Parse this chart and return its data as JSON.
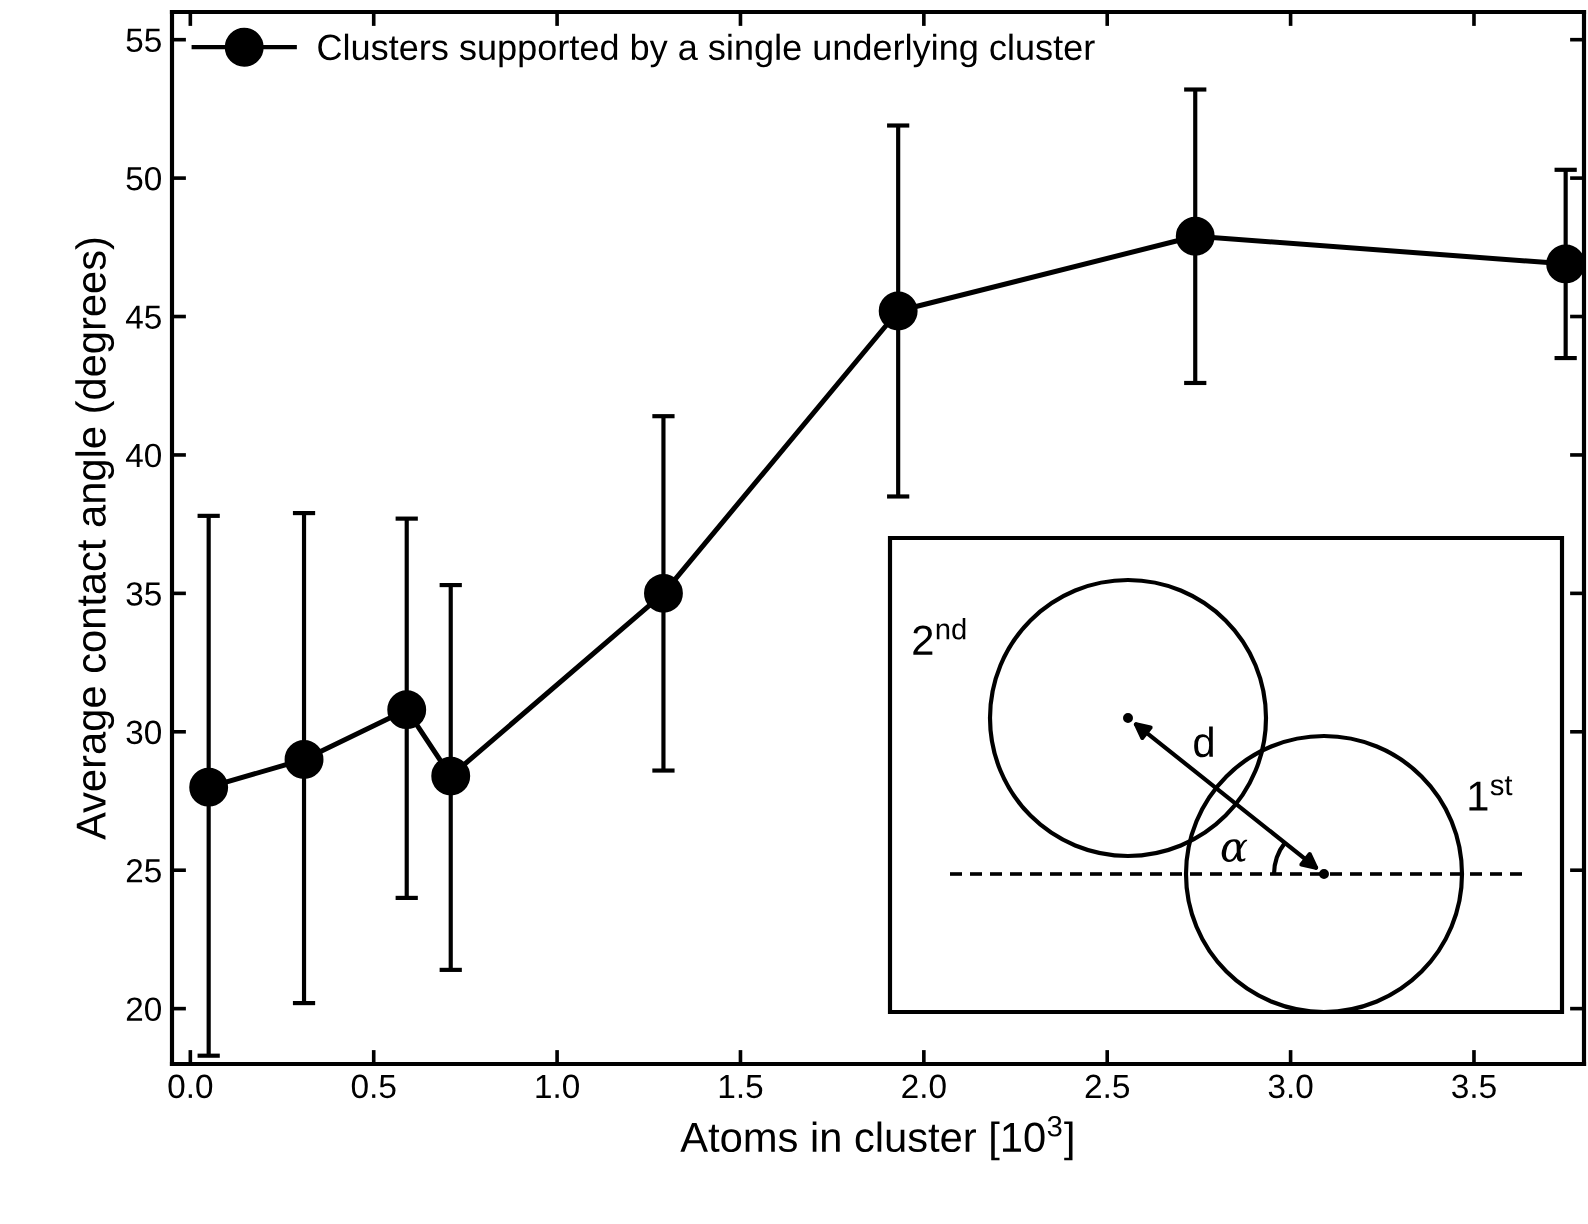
{
  "chart_data": {
    "type": "line",
    "xlabel": "Atoms in cluster [10$^{3}$]",
    "ylabel": "Average contact angle (degrees)",
    "x": [
      0.05,
      0.31,
      0.59,
      0.71,
      1.29,
      1.93,
      2.74,
      3.75
    ],
    "series": [
      {
        "name": "Clusters supported by a single underlying cluster",
        "color": "#000000",
        "values": [
          28.0,
          29.0,
          30.8,
          28.4,
          35.0,
          45.2,
          47.9,
          46.9
        ],
        "errors": [
          [
            18.3,
            37.8
          ],
          [
            20.2,
            37.9
          ],
          [
            24.0,
            37.7
          ],
          [
            21.4,
            35.3
          ],
          [
            28.6,
            41.4
          ],
          [
            38.5,
            51.9
          ],
          [
            42.6,
            53.2
          ],
          [
            43.5,
            50.3
          ]
        ]
      }
    ],
    "xlim": [
      -0.05,
      3.8
    ],
    "xticks": [
      {
        "value": 0,
        "label": "0.0"
      },
      0.5,
      {
        "value": 1,
        "label": "1.0"
      },
      1.5,
      {
        "value": 2,
        "label": "2.0"
      },
      2.5,
      {
        "value": 3,
        "label": "3.0"
      },
      3.5
    ],
    "ylim": [
      18,
      56
    ],
    "yticks": [
      20,
      25,
      30,
      35,
      40,
      45,
      50,
      55
    ],
    "marker": "circle",
    "line_style": "solid",
    "legend": "top left",
    "grid": false,
    "annotations": [
      "2$^{nd}$",
      "1$^{st}$",
      "d",
      "α"
    ]
  }
}
